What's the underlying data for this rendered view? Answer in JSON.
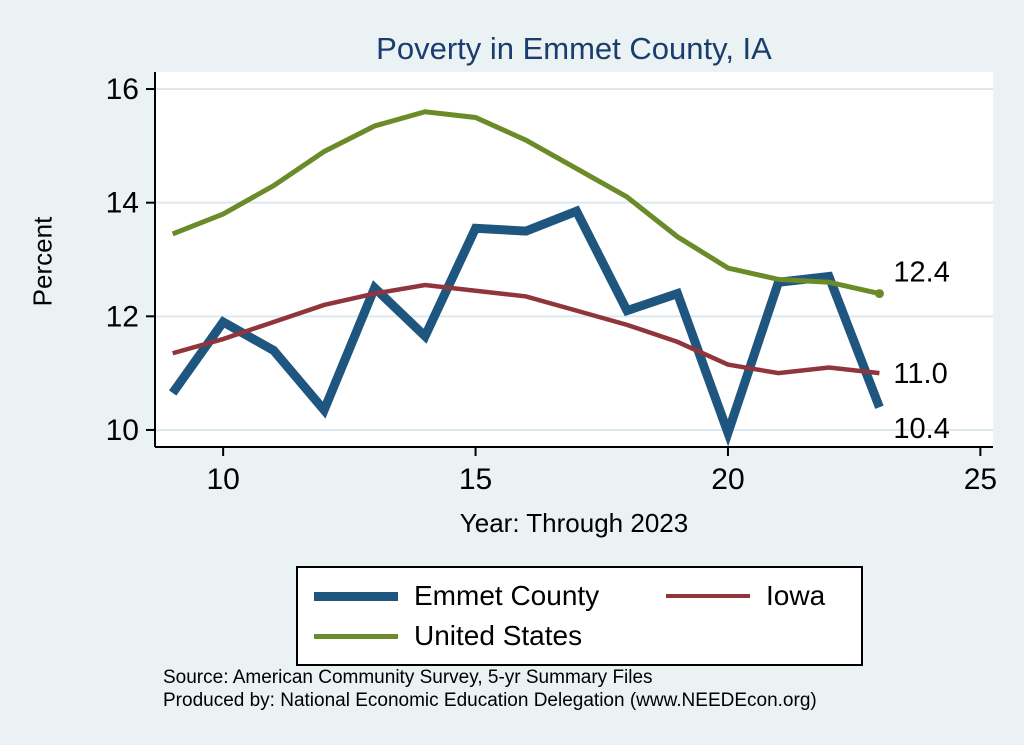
{
  "chart_data": {
    "type": "line",
    "title": "Poverty in Emmet County, IA",
    "xlabel": "Year: Through 2023",
    "ylabel": "Percent",
    "x": [
      9,
      10,
      11,
      12,
      13,
      14,
      15,
      16,
      17,
      18,
      19,
      20,
      21,
      22,
      23
    ],
    "series": [
      {
        "name": "Emmet County",
        "color": "#1f567f",
        "width": 9,
        "values": [
          10.65,
          11.9,
          11.4,
          10.35,
          12.5,
          11.65,
          13.55,
          13.5,
          13.85,
          12.1,
          12.4,
          9.95,
          12.6,
          12.7,
          10.4
        ]
      },
      {
        "name": "Iowa",
        "color": "#90353b",
        "width": 4.5,
        "values": [
          11.35,
          11.6,
          11.9,
          12.2,
          12.4,
          12.55,
          12.45,
          12.35,
          12.1,
          11.85,
          11.55,
          11.15,
          11.0,
          11.1,
          11.0
        ]
      },
      {
        "name": "United States",
        "color": "#6b8a28",
        "width": 5,
        "values": [
          13.45,
          13.8,
          14.3,
          14.9,
          15.35,
          15.6,
          15.5,
          15.1,
          14.6,
          14.1,
          13.4,
          12.85,
          12.65,
          12.6,
          12.4
        ],
        "end_marker": true
      }
    ],
    "xticks": [
      10,
      15,
      20,
      25
    ],
    "yticks": [
      10,
      12,
      14,
      16
    ],
    "xlim": [
      8.65,
      25.25
    ],
    "ylim": [
      9.7,
      16.3
    ],
    "grid": "horizontal",
    "legend_position": "bottom",
    "end_labels": [
      {
        "text": "12.4",
        "series_index": 2
      },
      {
        "text": "11.0",
        "series_index": 1
      },
      {
        "text": "10.4",
        "series_index": 0
      }
    ],
    "colors": {
      "background": "#eaf2f3",
      "plot_bg": "#ffffff",
      "grid": "#dde9ee",
      "axis": "#000000",
      "title": "#1b3c6e"
    }
  },
  "footer": {
    "line1": "Source: American Community Survey, 5-yr Summary Files",
    "line2": "Produced by: National Economic Education Delegation (www.NEEDEcon.org)"
  }
}
